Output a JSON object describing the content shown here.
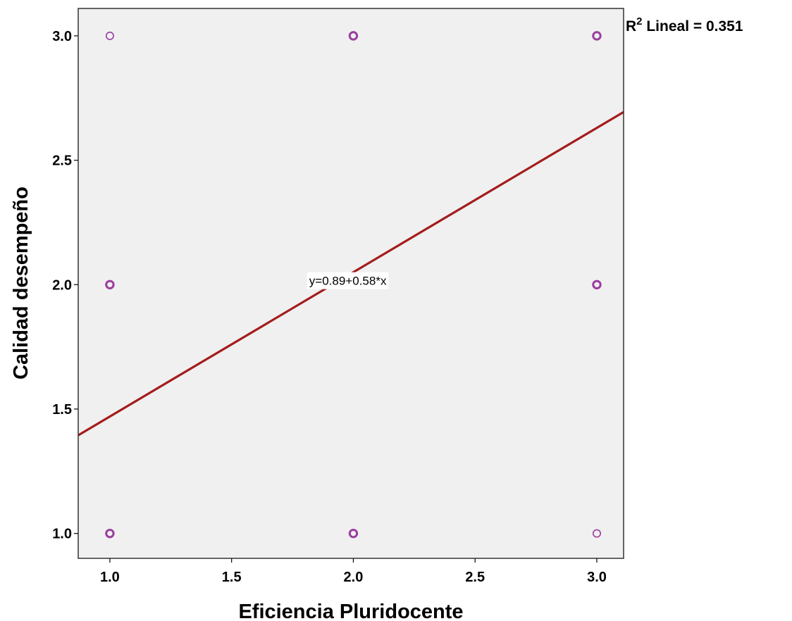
{
  "chart_data": {
    "type": "scatter",
    "title": "",
    "xlabel": "Eficiencia Pluridocente",
    "ylabel": "Calidad desempeño",
    "xlim": [
      0.87,
      3.11
    ],
    "ylim": [
      0.9,
      3.11
    ],
    "xticks": [
      1.0,
      1.5,
      2.0,
      2.5,
      3.0
    ],
    "yticks": [
      1.0,
      1.5,
      2.0,
      2.5,
      3.0
    ],
    "xtick_labels": [
      "1.0",
      "1.5",
      "2.0",
      "2.5",
      "3.0"
    ],
    "ytick_labels": [
      "1.0",
      "1.5",
      "2.0",
      "2.5",
      "3.0"
    ],
    "grid": false,
    "points": [
      {
        "x": 1.0,
        "y": 3.0,
        "weight": "single"
      },
      {
        "x": 1.0,
        "y": 2.0,
        "weight": "multiple"
      },
      {
        "x": 1.0,
        "y": 1.0,
        "weight": "multiple"
      },
      {
        "x": 2.0,
        "y": 3.0,
        "weight": "multiple"
      },
      {
        "x": 2.0,
        "y": 2.0,
        "weight": "single"
      },
      {
        "x": 2.0,
        "y": 1.0,
        "weight": "multiple"
      },
      {
        "x": 3.0,
        "y": 3.0,
        "weight": "multiple"
      },
      {
        "x": 3.0,
        "y": 2.0,
        "weight": "multiple"
      },
      {
        "x": 3.0,
        "y": 1.0,
        "weight": "single"
      }
    ],
    "fit_line": {
      "intercept": 0.89,
      "slope": 0.58,
      "x_range": [
        0.87,
        3.11
      ],
      "label": "y=0.89+0.58*x",
      "label_at": {
        "x": 1.81,
        "y": 2.05
      }
    },
    "r2_label": {
      "prefix": "R",
      "superscript": "2",
      "suffix": " Lineal = 0.351"
    },
    "colors": {
      "background": "#f0f0f0",
      "marker": "#9a3d9e",
      "line": "#a41c1c",
      "frame": "#333333"
    }
  }
}
